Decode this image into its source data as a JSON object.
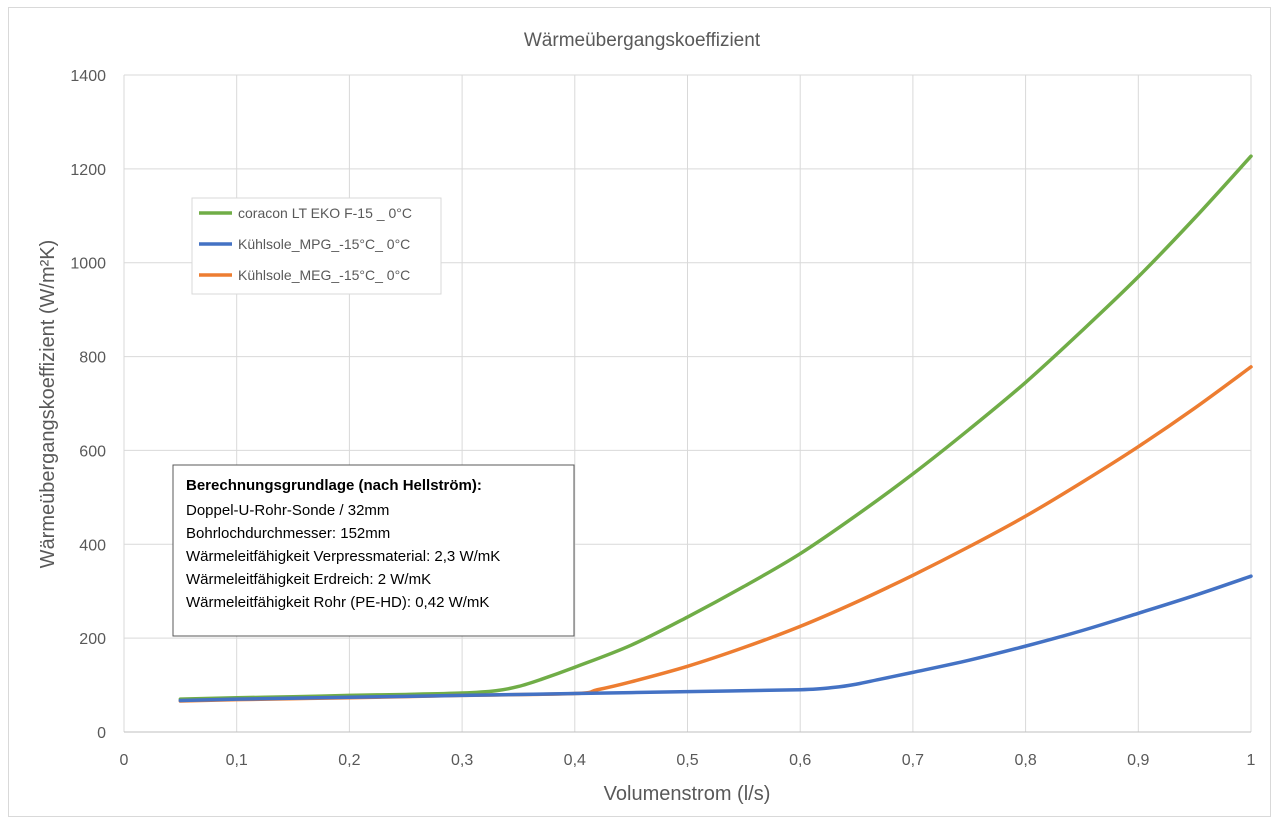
{
  "chart_data": {
    "type": "line",
    "title": "Wärmeübergangskoeffizient",
    "xlabel": "Volumenstrom (l/s)",
    "ylabel": "Wärmeübergangskoeffizient  (W/m²K)",
    "xlim": [
      0,
      1
    ],
    "ylim": [
      0,
      1400
    ],
    "x_ticks": [
      "0",
      "0,1",
      "0,2",
      "0,3",
      "0,4",
      "0,5",
      "0,6",
      "0,7",
      "0,8",
      "0,9",
      "1"
    ],
    "y_ticks": [
      "0",
      "200",
      "400",
      "600",
      "800",
      "1000",
      "1200",
      "1400"
    ],
    "grid": true,
    "legend_position": "upper-left",
    "series": [
      {
        "name": "coracon LT EKO F-15 _ 0°C",
        "color": "#70ad47",
        "points": [
          [
            0.05,
            70
          ],
          [
            0.1,
            73
          ],
          [
            0.15,
            75
          ],
          [
            0.2,
            78
          ],
          [
            0.25,
            80
          ],
          [
            0.3,
            83
          ],
          [
            0.33,
            88
          ],
          [
            0.35,
            97
          ],
          [
            0.37,
            112
          ],
          [
            0.4,
            138
          ],
          [
            0.45,
            185
          ],
          [
            0.5,
            245
          ],
          [
            0.55,
            310
          ],
          [
            0.6,
            380
          ],
          [
            0.65,
            462
          ],
          [
            0.7,
            550
          ],
          [
            0.75,
            645
          ],
          [
            0.8,
            745
          ],
          [
            0.85,
            855
          ],
          [
            0.9,
            970
          ],
          [
            0.95,
            1095
          ],
          [
            1.0,
            1227
          ]
        ]
      },
      {
        "name": "Kühlsole_MPG_-15°C_ 0°C",
        "color": "#4472c4",
        "points": [
          [
            0.05,
            67
          ],
          [
            0.1,
            70
          ],
          [
            0.2,
            74
          ],
          [
            0.3,
            78
          ],
          [
            0.4,
            82
          ],
          [
            0.5,
            86
          ],
          [
            0.6,
            90
          ],
          [
            0.63,
            95
          ],
          [
            0.65,
            102
          ],
          [
            0.67,
            112
          ],
          [
            0.7,
            127
          ],
          [
            0.75,
            153
          ],
          [
            0.8,
            183
          ],
          [
            0.85,
            216
          ],
          [
            0.9,
            253
          ],
          [
            0.95,
            291
          ],
          [
            1.0,
            332
          ]
        ]
      },
      {
        "name": "Kühlsole_MEG_-15°C_ 0°C",
        "color": "#ed7d31",
        "points": [
          [
            0.05,
            66
          ],
          [
            0.1,
            69
          ],
          [
            0.2,
            73
          ],
          [
            0.3,
            78
          ],
          [
            0.4,
            82
          ],
          [
            0.42,
            90
          ],
          [
            0.45,
            107
          ],
          [
            0.5,
            140
          ],
          [
            0.55,
            180
          ],
          [
            0.6,
            225
          ],
          [
            0.65,
            277
          ],
          [
            0.7,
            334
          ],
          [
            0.75,
            395
          ],
          [
            0.8,
            460
          ],
          [
            0.85,
            532
          ],
          [
            0.9,
            608
          ],
          [
            0.95,
            690
          ],
          [
            1.0,
            778
          ]
        ]
      }
    ],
    "annotation": {
      "title": "Berechnungsgrundlage (nach Hellström):",
      "lines": [
        "Doppel-U-Rohr-Sonde / 32mm",
        "Bohrlochdurchmesser: 152mm",
        "Wärmeleitfähigkeit  Verpressmaterial: 2,3 W/mK",
        "Wärmeleitfähigkeit  Erdreich: 2 W/mK",
        "Wärmeleitfähigkeit  Rohr (PE-HD): 0,42 W/mK"
      ]
    }
  }
}
